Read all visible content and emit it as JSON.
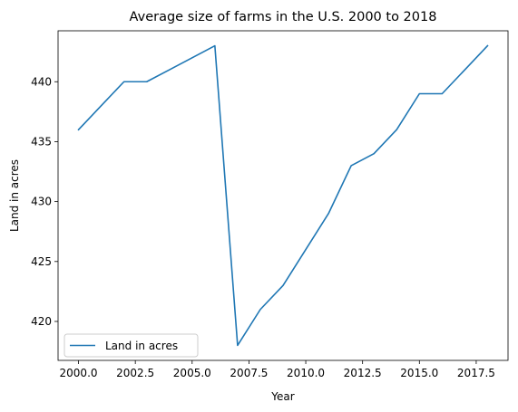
{
  "chart_data": {
    "type": "line",
    "title": "Average size of farms in the U.S. 2000 to 2018",
    "xlabel": "Year",
    "ylabel": "Land in acres",
    "xlim": [
      1999.1,
      2018.9
    ],
    "ylim": [
      416.75,
      444.25
    ],
    "x_ticks": [
      2000,
      2002.5,
      2005,
      2007.5,
      2010,
      2012.5,
      2015,
      2017.5
    ],
    "x_tick_labels": [
      "2000.0",
      "2002.5",
      "2005.0",
      "2007.5",
      "2010.0",
      "2012.5",
      "2015.0",
      "2017.5"
    ],
    "y_ticks": [
      420,
      425,
      430,
      435,
      440
    ],
    "y_tick_labels": [
      "420",
      "425",
      "430",
      "435",
      "440"
    ],
    "grid": false,
    "legend_position": "lower left",
    "series": [
      {
        "name": "Land in acres",
        "color": "#1f77b4",
        "x": [
          2000,
          2001,
          2002,
          2003,
          2004,
          2005,
          2006,
          2007,
          2008,
          2009,
          2010,
          2011,
          2012,
          2013,
          2014,
          2015,
          2016,
          2017,
          2018
        ],
        "y": [
          436,
          438,
          440,
          440,
          441,
          442,
          443,
          418,
          421,
          423,
          426,
          429,
          433,
          434,
          436,
          439,
          439,
          441,
          443
        ]
      }
    ]
  }
}
